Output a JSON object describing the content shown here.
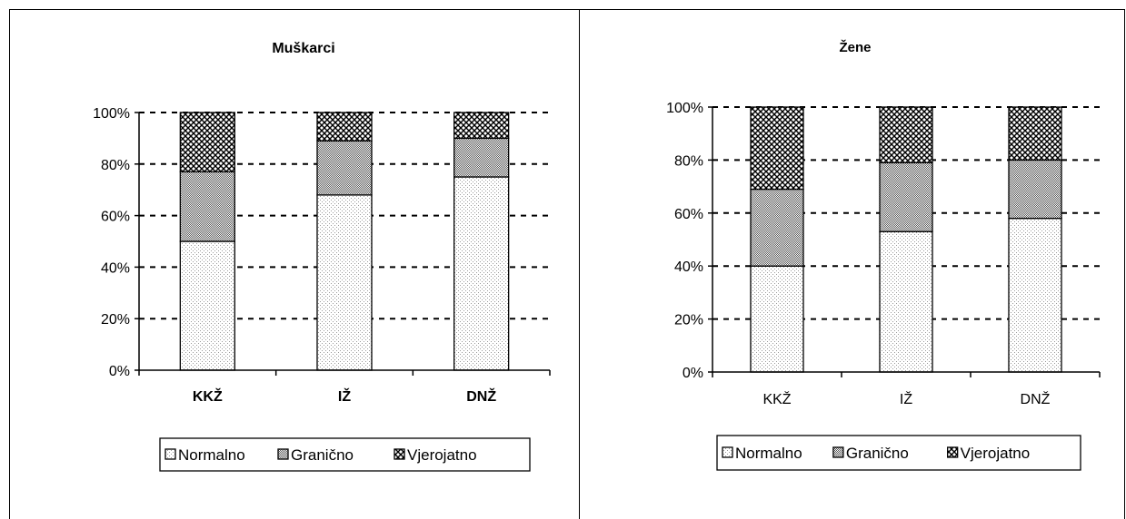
{
  "chart_data": [
    {
      "type": "bar",
      "stacked": true,
      "percent_axis": true,
      "title": "Muškarci",
      "categories": [
        "KKŽ",
        "IŽ",
        "DNŽ"
      ],
      "series": [
        {
          "name": "Normalno",
          "values": [
            50,
            68,
            75
          ]
        },
        {
          "name": "Granično",
          "values": [
            27,
            21,
            15
          ]
        },
        {
          "name": "Vjerojatno",
          "values": [
            23,
            11,
            10
          ]
        }
      ],
      "ylim": [
        0,
        100
      ],
      "yticks": [
        "0%",
        "20%",
        "40%",
        "60%",
        "80%",
        "100%"
      ],
      "grid": true,
      "legend_position": "bottom"
    },
    {
      "type": "bar",
      "stacked": true,
      "percent_axis": true,
      "title": "Žene",
      "categories": [
        "KKŽ",
        "IŽ",
        "DNŽ"
      ],
      "series": [
        {
          "name": "Normalno",
          "values": [
            40,
            53,
            58
          ]
        },
        {
          "name": "Granično",
          "values": [
            29,
            26,
            22
          ]
        },
        {
          "name": "Vjerojatno",
          "values": [
            31,
            21,
            20
          ]
        }
      ],
      "ylim": [
        0,
        100
      ],
      "yticks": [
        "0%",
        "20%",
        "40%",
        "60%",
        "80%",
        "100%"
      ],
      "grid": true,
      "legend_position": "bottom"
    }
  ]
}
